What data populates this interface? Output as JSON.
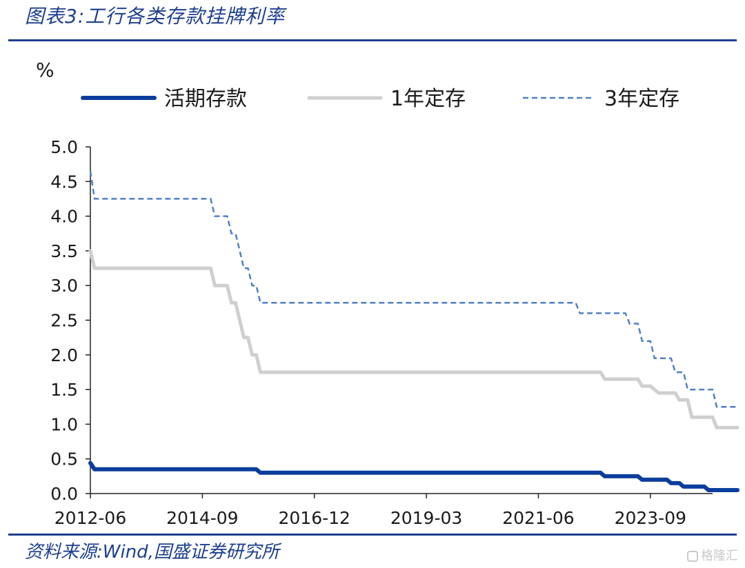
{
  "figure": {
    "title": "图表3:工行各类存款挂牌利率",
    "source": "资料来源:Wind,国盛证券研究所",
    "watermark": "格隆汇"
  },
  "colors": {
    "brand": "#1d3f8f",
    "demand": "#0b3d9c",
    "one_year": "#cfcfcf",
    "three_year": "#4f7fc6",
    "axis": "#222222"
  },
  "chart_data": {
    "type": "line",
    "title": "",
    "xlabel": "",
    "ylabel": "%",
    "ylim": [
      0,
      5.0
    ],
    "yticks": [
      "0.0",
      "0.5",
      "1.0",
      "1.5",
      "2.0",
      "2.5",
      "3.0",
      "3.5",
      "4.0",
      "4.5",
      "5.0"
    ],
    "xlim": [
      "2012-06",
      "2024-12"
    ],
    "xticks": [
      "2012-06",
      "2014-09",
      "2016-12",
      "2019-03",
      "2021-06",
      "2023-09"
    ],
    "legend_position": "top",
    "grid": false,
    "series": [
      {
        "name": "活期存款",
        "style": "solid-thick",
        "points": [
          [
            "2012-06",
            0.44
          ],
          [
            "2012-07",
            0.35
          ],
          [
            "2015-10",
            0.35
          ],
          [
            "2015-11",
            0.3
          ],
          [
            "2022-09",
            0.3
          ],
          [
            "2022-10",
            0.25
          ],
          [
            "2023-06",
            0.25
          ],
          [
            "2023-07",
            0.2
          ],
          [
            "2024-01",
            0.2
          ],
          [
            "2024-02",
            0.15
          ],
          [
            "2024-04",
            0.15
          ],
          [
            "2024-05",
            0.1
          ],
          [
            "2024-10",
            0.1
          ],
          [
            "2024-11",
            0.05
          ],
          [
            "2025-06",
            0.05
          ]
        ]
      },
      {
        "name": "1年定存",
        "style": "solid",
        "points": [
          [
            "2012-06",
            3.5
          ],
          [
            "2012-07",
            3.25
          ],
          [
            "2014-11",
            3.25
          ],
          [
            "2014-12",
            3.0
          ],
          [
            "2015-03",
            3.0
          ],
          [
            "2015-04",
            2.75
          ],
          [
            "2015-05",
            2.75
          ],
          [
            "2015-06",
            2.5
          ],
          [
            "2015-07",
            2.25
          ],
          [
            "2015-08",
            2.25
          ],
          [
            "2015-09",
            2.0
          ],
          [
            "2015-10",
            2.0
          ],
          [
            "2015-11",
            1.75
          ],
          [
            "2022-09",
            1.75
          ],
          [
            "2022-10",
            1.65
          ],
          [
            "2023-06",
            1.65
          ],
          [
            "2023-07",
            1.55
          ],
          [
            "2023-09",
            1.55
          ],
          [
            "2023-11",
            1.45
          ],
          [
            "2024-03",
            1.45
          ],
          [
            "2024-04",
            1.35
          ],
          [
            "2024-06",
            1.35
          ],
          [
            "2024-07",
            1.1
          ],
          [
            "2024-12",
            1.1
          ],
          [
            "2025-01",
            0.95
          ],
          [
            "2025-06",
            0.95
          ]
        ]
      },
      {
        "name": "3年定存",
        "style": "dashed",
        "points": [
          [
            "2012-06",
            4.65
          ],
          [
            "2012-07",
            4.25
          ],
          [
            "2014-11",
            4.25
          ],
          [
            "2014-12",
            4.0
          ],
          [
            "2015-03",
            4.0
          ],
          [
            "2015-04",
            3.75
          ],
          [
            "2015-05",
            3.75
          ],
          [
            "2015-06",
            3.5
          ],
          [
            "2015-07",
            3.25
          ],
          [
            "2015-08",
            3.25
          ],
          [
            "2015-09",
            3.0
          ],
          [
            "2015-10",
            3.0
          ],
          [
            "2015-11",
            2.75
          ],
          [
            "2022-03",
            2.75
          ],
          [
            "2022-04",
            2.6
          ],
          [
            "2023-03",
            2.6
          ],
          [
            "2023-04",
            2.45
          ],
          [
            "2023-06",
            2.45
          ],
          [
            "2023-07",
            2.2
          ],
          [
            "2023-09",
            2.2
          ],
          [
            "2023-10",
            1.95
          ],
          [
            "2024-02",
            1.95
          ],
          [
            "2024-03",
            1.75
          ],
          [
            "2024-05",
            1.75
          ],
          [
            "2024-06",
            1.5
          ],
          [
            "2024-12",
            1.5
          ],
          [
            "2025-01",
            1.25
          ],
          [
            "2025-06",
            1.25
          ]
        ]
      }
    ]
  }
}
